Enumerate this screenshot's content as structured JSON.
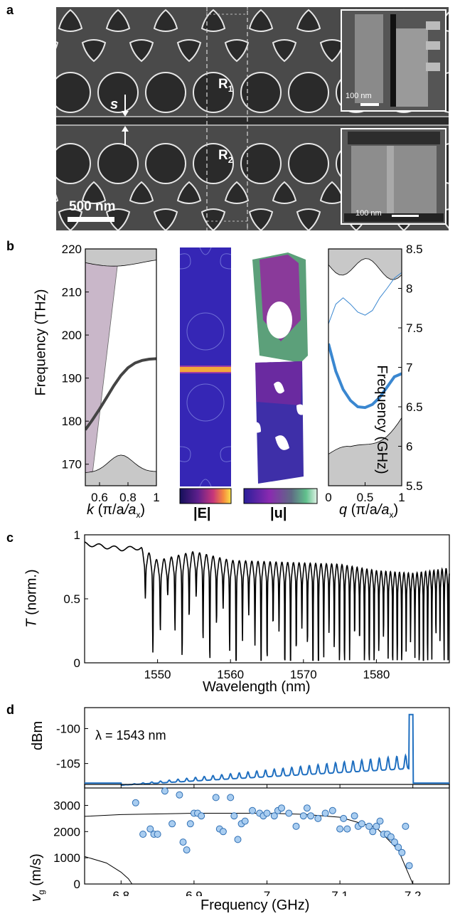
{
  "panel_a": {
    "letter": "a",
    "label_r1": "R",
    "label_r1_sub": "1",
    "label_r2": "R",
    "label_r2_sub": "2",
    "gap_label": "s",
    "scalebar_main": "500 nm",
    "inset_top_scale": "100 nm",
    "inset_bottom_scale": "100 nm"
  },
  "panel_b": {
    "letter": "b",
    "left_ylabel": "Frequency (THz)",
    "left_xlabel_k": "k",
    "left_xlabel_unit": "(π/a",
    "left_xlabel_sub": "x",
    "left_xlabel_close": ")",
    "left_yticks": [
      "220",
      "210",
      "200",
      "190",
      "180",
      "170"
    ],
    "left_xticks": [
      "0.6",
      "0.8",
      "1"
    ],
    "cbar_e_label": "|E|",
    "cbar_u_label": "|u|",
    "right_ylabel": "Frequency (GHz)",
    "right_xlabel_q": "q",
    "right_xlabel_unit": "(π/a",
    "right_xlabel_sub": "x",
    "right_xlabel_close": ")",
    "right_yticks": [
      "8.5",
      "8",
      "7.5",
      "7",
      "6.5",
      "6",
      "5.5"
    ],
    "right_xticks": [
      "0",
      "0.5",
      "1"
    ]
  },
  "panel_c": {
    "letter": "c",
    "ylabel_T": "T",
    "ylabel_rest": "(norm.)",
    "xlabel": "Wavelength (nm)",
    "yticks": [
      "1",
      "0.5",
      "0"
    ],
    "xticks": [
      "1550",
      "1560",
      "1570",
      "1580"
    ]
  },
  "panel_d": {
    "letter": "d",
    "top_ylabel": "dBm",
    "top_yticks": [
      "-100",
      "-105"
    ],
    "lambda_label": "λ = 1543 nm",
    "bottom_ylabel_v": "v",
    "bottom_ylabel_sub": "g",
    "bottom_ylabel_rest": "(m/s)",
    "bottom_yticks": [
      "3000",
      "2000",
      "1000",
      "0"
    ],
    "xlabel": "Frequency (GHz)",
    "xticks": [
      "6.8",
      "6.9",
      "7",
      "7.1",
      "7.2"
    ]
  },
  "colors": {
    "mode_dark": "#444444",
    "mode_blue": "#3a87d0",
    "spectrum_blue": "#1f6fc0",
    "dot_fill": "#a9cdf0",
    "dot_stroke": "#2f6fb4",
    "bandgap_gray": "#c8c8c8",
    "lightcone": "#c9b7c9"
  },
  "chart_data": [
    {
      "type": "line",
      "title": "",
      "xlabel": "k (π/a_x)",
      "ylabel": "Frequency (THz)",
      "xlim": [
        0.5,
        1.0
      ],
      "ylim": [
        165,
        220
      ],
      "series": [
        {
          "x": [
            0.5,
            0.55,
            0.6,
            0.65,
            0.7,
            0.75,
            0.8,
            0.85,
            0.9,
            0.95,
            1.0
          ],
          "values": [
            178,
            180.3,
            182.8,
            185.5,
            188.2,
            190.6,
            192.4,
            193.5,
            194.1,
            194.4,
            194.5
          ]
        }
      ]
    },
    {
      "type": "line",
      "title": "",
      "xlabel": "q (π/a_x)",
      "ylabel": "Frequency (GHz)",
      "xlim": [
        0,
        1
      ],
      "ylim": [
        5.5,
        8.5
      ],
      "series": [
        {
          "x": [
            0,
            0.1,
            0.2,
            0.3,
            0.4,
            0.5,
            0.6,
            0.7,
            0.8,
            0.9,
            1.0
          ],
          "values": [
            7.3,
            6.95,
            6.72,
            6.58,
            6.5,
            6.49,
            6.53,
            6.62,
            6.75,
            6.88,
            6.92
          ]
        },
        {
          "x": [
            0,
            0.1,
            0.2,
            0.3,
            0.4,
            0.5,
            0.6,
            0.7,
            0.8,
            0.9,
            1.0
          ],
          "values": [
            7.55,
            7.8,
            7.88,
            7.8,
            7.7,
            7.66,
            7.72,
            7.88,
            8.0,
            8.13,
            8.2
          ]
        }
      ]
    },
    {
      "type": "line",
      "title": "",
      "xlabel": "Wavelength (nm)",
      "ylabel": "T (norm.)",
      "xlim": [
        1540,
        1590
      ],
      "ylim": [
        0,
        1
      ],
      "series": [
        {
          "x": [
            1540,
            1545,
            1548,
            1550,
            1555,
            1560,
            1565,
            1570,
            1575,
            1580,
            1585,
            1590
          ],
          "values": [
            0.93,
            0.89,
            0.9,
            0.8,
            0.87,
            0.8,
            0.79,
            0.78,
            0.77,
            0.72,
            0.7,
            0.74
          ]
        }
      ]
    },
    {
      "type": "line",
      "title": "",
      "xlabel": "Frequency (GHz)",
      "ylabel": "dBm",
      "xlim": [
        6.75,
        7.25
      ],
      "ylim": [
        -108.5,
        -97
      ],
      "series": [
        {
          "x": [
            6.75,
            6.8,
            6.85,
            6.9,
            6.95,
            7.0,
            7.05,
            7.1,
            7.15,
            7.19,
            7.2,
            7.22,
            7.25
          ],
          "values": [
            -107.8,
            -107.7,
            -107.5,
            -107,
            -106.5,
            -105.5,
            -104.3,
            -103.5,
            -102.5,
            -98,
            -106,
            -107.7,
            -108
          ]
        }
      ]
    },
    {
      "type": "scatter",
      "title": "",
      "xlabel": "Frequency (GHz)",
      "ylabel": "v_g (m/s)",
      "xlim": [
        6.75,
        7.25
      ],
      "ylim": [
        0,
        3800
      ],
      "x": [
        6.82,
        6.83,
        6.84,
        6.845,
        6.85,
        6.86,
        6.87,
        6.88,
        6.885,
        6.89,
        6.895,
        6.9,
        6.905,
        6.91,
        6.93,
        6.935,
        6.94,
        6.95,
        6.955,
        6.96,
        6.965,
        6.97,
        6.98,
        6.99,
        6.995,
        7.0,
        7.01,
        7.015,
        7.02,
        7.03,
        7.04,
        7.05,
        7.055,
        7.06,
        7.07,
        7.08,
        7.09,
        7.1,
        7.105,
        7.11,
        7.12,
        7.125,
        7.13,
        7.14,
        7.145,
        7.15,
        7.155,
        7.16,
        7.165,
        7.17,
        7.175,
        7.18,
        7.185,
        7.19,
        7.195
      ],
      "values": [
        3100,
        1900,
        2100,
        1900,
        1900,
        3550,
        2300,
        3400,
        1600,
        1300,
        2300,
        2700,
        2700,
        2600,
        3300,
        2100,
        2000,
        3300,
        2600,
        1700,
        2300,
        2400,
        2800,
        2700,
        2600,
        2700,
        2600,
        2800,
        2900,
        2700,
        2200,
        2600,
        2900,
        2600,
        2500,
        2700,
        2800,
        2100,
        2500,
        2100,
        2600,
        2200,
        2300,
        2200,
        2000,
        2200,
        2400,
        1900,
        1900,
        1800,
        1600,
        1400,
        1200,
        2200,
        700
      ],
      "series": [
        {
          "x": [
            6.75,
            6.8,
            6.9,
            7.0,
            7.05,
            7.1,
            7.15,
            7.18,
            7.2
          ],
          "values": [
            2580,
            2650,
            2700,
            2700,
            2660,
            2550,
            2150,
            1300,
            0
          ]
        },
        {
          "x": [
            6.75,
            6.78,
            6.8,
            6.81,
            6.815
          ],
          "values": [
            1050,
            800,
            450,
            200,
            0
          ]
        }
      ]
    }
  ]
}
